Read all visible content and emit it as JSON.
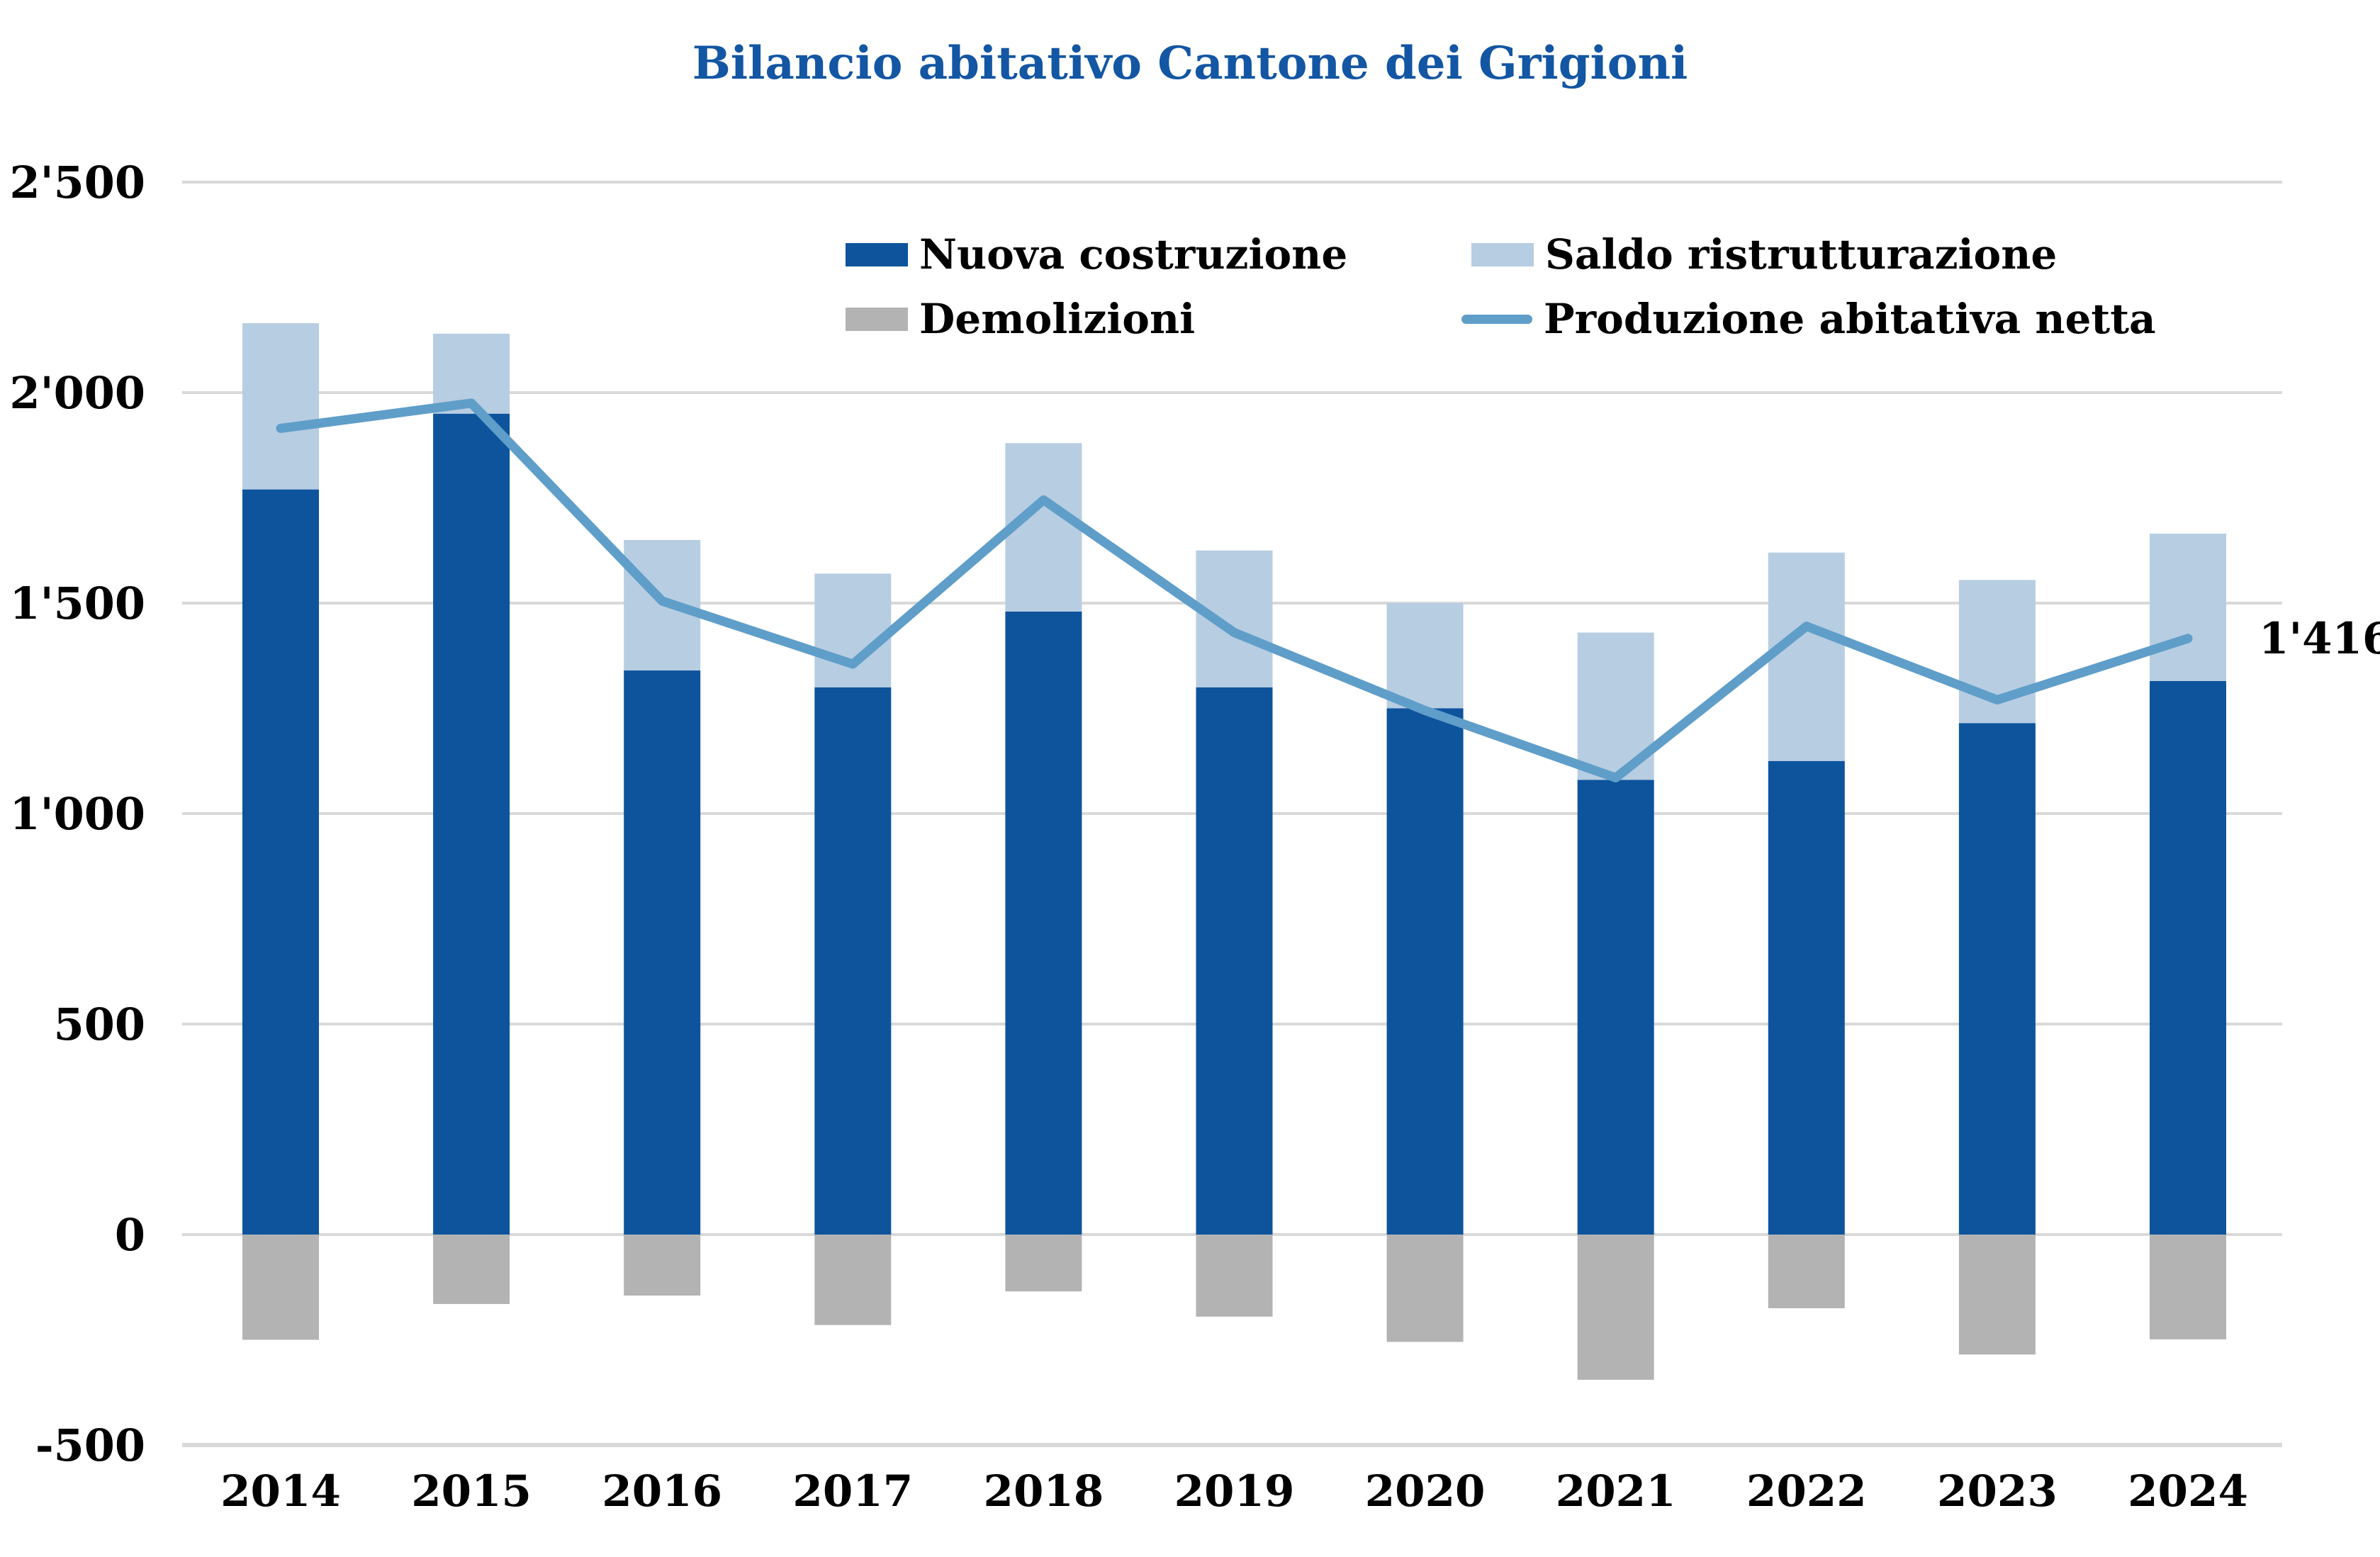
{
  "chart_data": {
    "type": "stacked-bar+line",
    "title": "Bilancio abitativo Cantone dei Grigioni",
    "title_color": "#1356a3",
    "categories": [
      "2014",
      "2015",
      "2016",
      "2017",
      "2018",
      "2019",
      "2020",
      "2021",
      "2022",
      "2023",
      "2024"
    ],
    "series": [
      {
        "name": "Nuova costruzione",
        "type": "bar",
        "stack": "positive",
        "color": "#0d549d",
        "values": [
          1770,
          1950,
          1340,
          1300,
          1480,
          1300,
          1250,
          1080,
          1125,
          1215,
          1315
        ]
      },
      {
        "name": "Saldo ristrutturazione",
        "type": "bar",
        "stack": "positive",
        "color": "#b7cde2",
        "values": [
          395,
          190,
          310,
          270,
          400,
          325,
          250,
          350,
          495,
          340,
          350
        ]
      },
      {
        "name": "Demolizioni",
        "type": "bar",
        "stack": "negative",
        "color": "#b3b3b3",
        "values": [
          -250,
          -165,
          -145,
          -215,
          -135,
          -195,
          -255,
          -345,
          -175,
          -285,
          -249
        ]
      },
      {
        "name": "Produzione abitativa netta",
        "type": "line",
        "color": "#5f9ec9",
        "values": [
          1915,
          1975,
          1505,
          1355,
          1745,
          1430,
          1245,
          1085,
          1445,
          1270,
          1416
        ]
      }
    ],
    "ylim": [
      -500,
      2500
    ],
    "ytick_step": 500,
    "yticks": [
      2500,
      2000,
      1500,
      1000,
      500,
      0,
      -500
    ],
    "ytick_labels": [
      "2'500",
      "2'000",
      "1'500",
      "1'000",
      "500",
      "0",
      "-500"
    ],
    "grid": true,
    "gridline_color": "#d9d9d9",
    "legend_position": "top-center-two-columns",
    "end_label": {
      "text": "1'416",
      "series": "Produzione abitativa netta"
    }
  }
}
